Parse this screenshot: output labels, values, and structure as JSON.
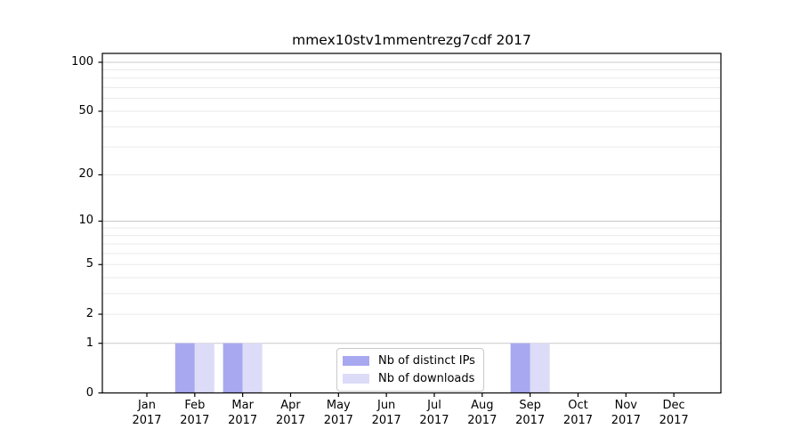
{
  "chart_data": {
    "type": "bar",
    "title": "mmex10stv1mmentrezg7cdf 2017",
    "categories": [
      "Jan 2017",
      "Feb 2017",
      "Mar 2017",
      "Apr 2017",
      "May 2017",
      "Jun 2017",
      "Jul 2017",
      "Aug 2017",
      "Sep 2017",
      "Oct 2017",
      "Nov 2017",
      "Dec 2017"
    ],
    "series": [
      {
        "name": "Nb of distinct IPs",
        "color": "#a8a8f0",
        "values": [
          0,
          1,
          1,
          0,
          0,
          0,
          0,
          0,
          1,
          0,
          0,
          0
        ]
      },
      {
        "name": "Nb of downloads",
        "color": "#dcdcf8",
        "values": [
          0,
          1,
          1,
          0,
          0,
          0,
          0,
          0,
          1,
          0,
          0,
          0
        ]
      }
    ],
    "xlabel": "",
    "ylabel": "",
    "y_axis": {
      "scale": "log1p",
      "ticks": [
        0,
        1,
        2,
        5,
        10,
        20,
        50,
        100
      ],
      "ylim": [
        0,
        113
      ],
      "grid_major": [
        1,
        10,
        100
      ],
      "grid_minor": [
        2,
        3,
        4,
        5,
        6,
        7,
        8,
        9,
        20,
        30,
        40,
        50,
        60,
        70,
        80,
        90
      ]
    },
    "legend": {
      "position": "lower center"
    },
    "colors": {
      "grid_major": "#c8c8c8",
      "grid_minor": "#eaeaea",
      "axis": "#000000",
      "background": "#ffffff",
      "text": "#000000"
    }
  }
}
